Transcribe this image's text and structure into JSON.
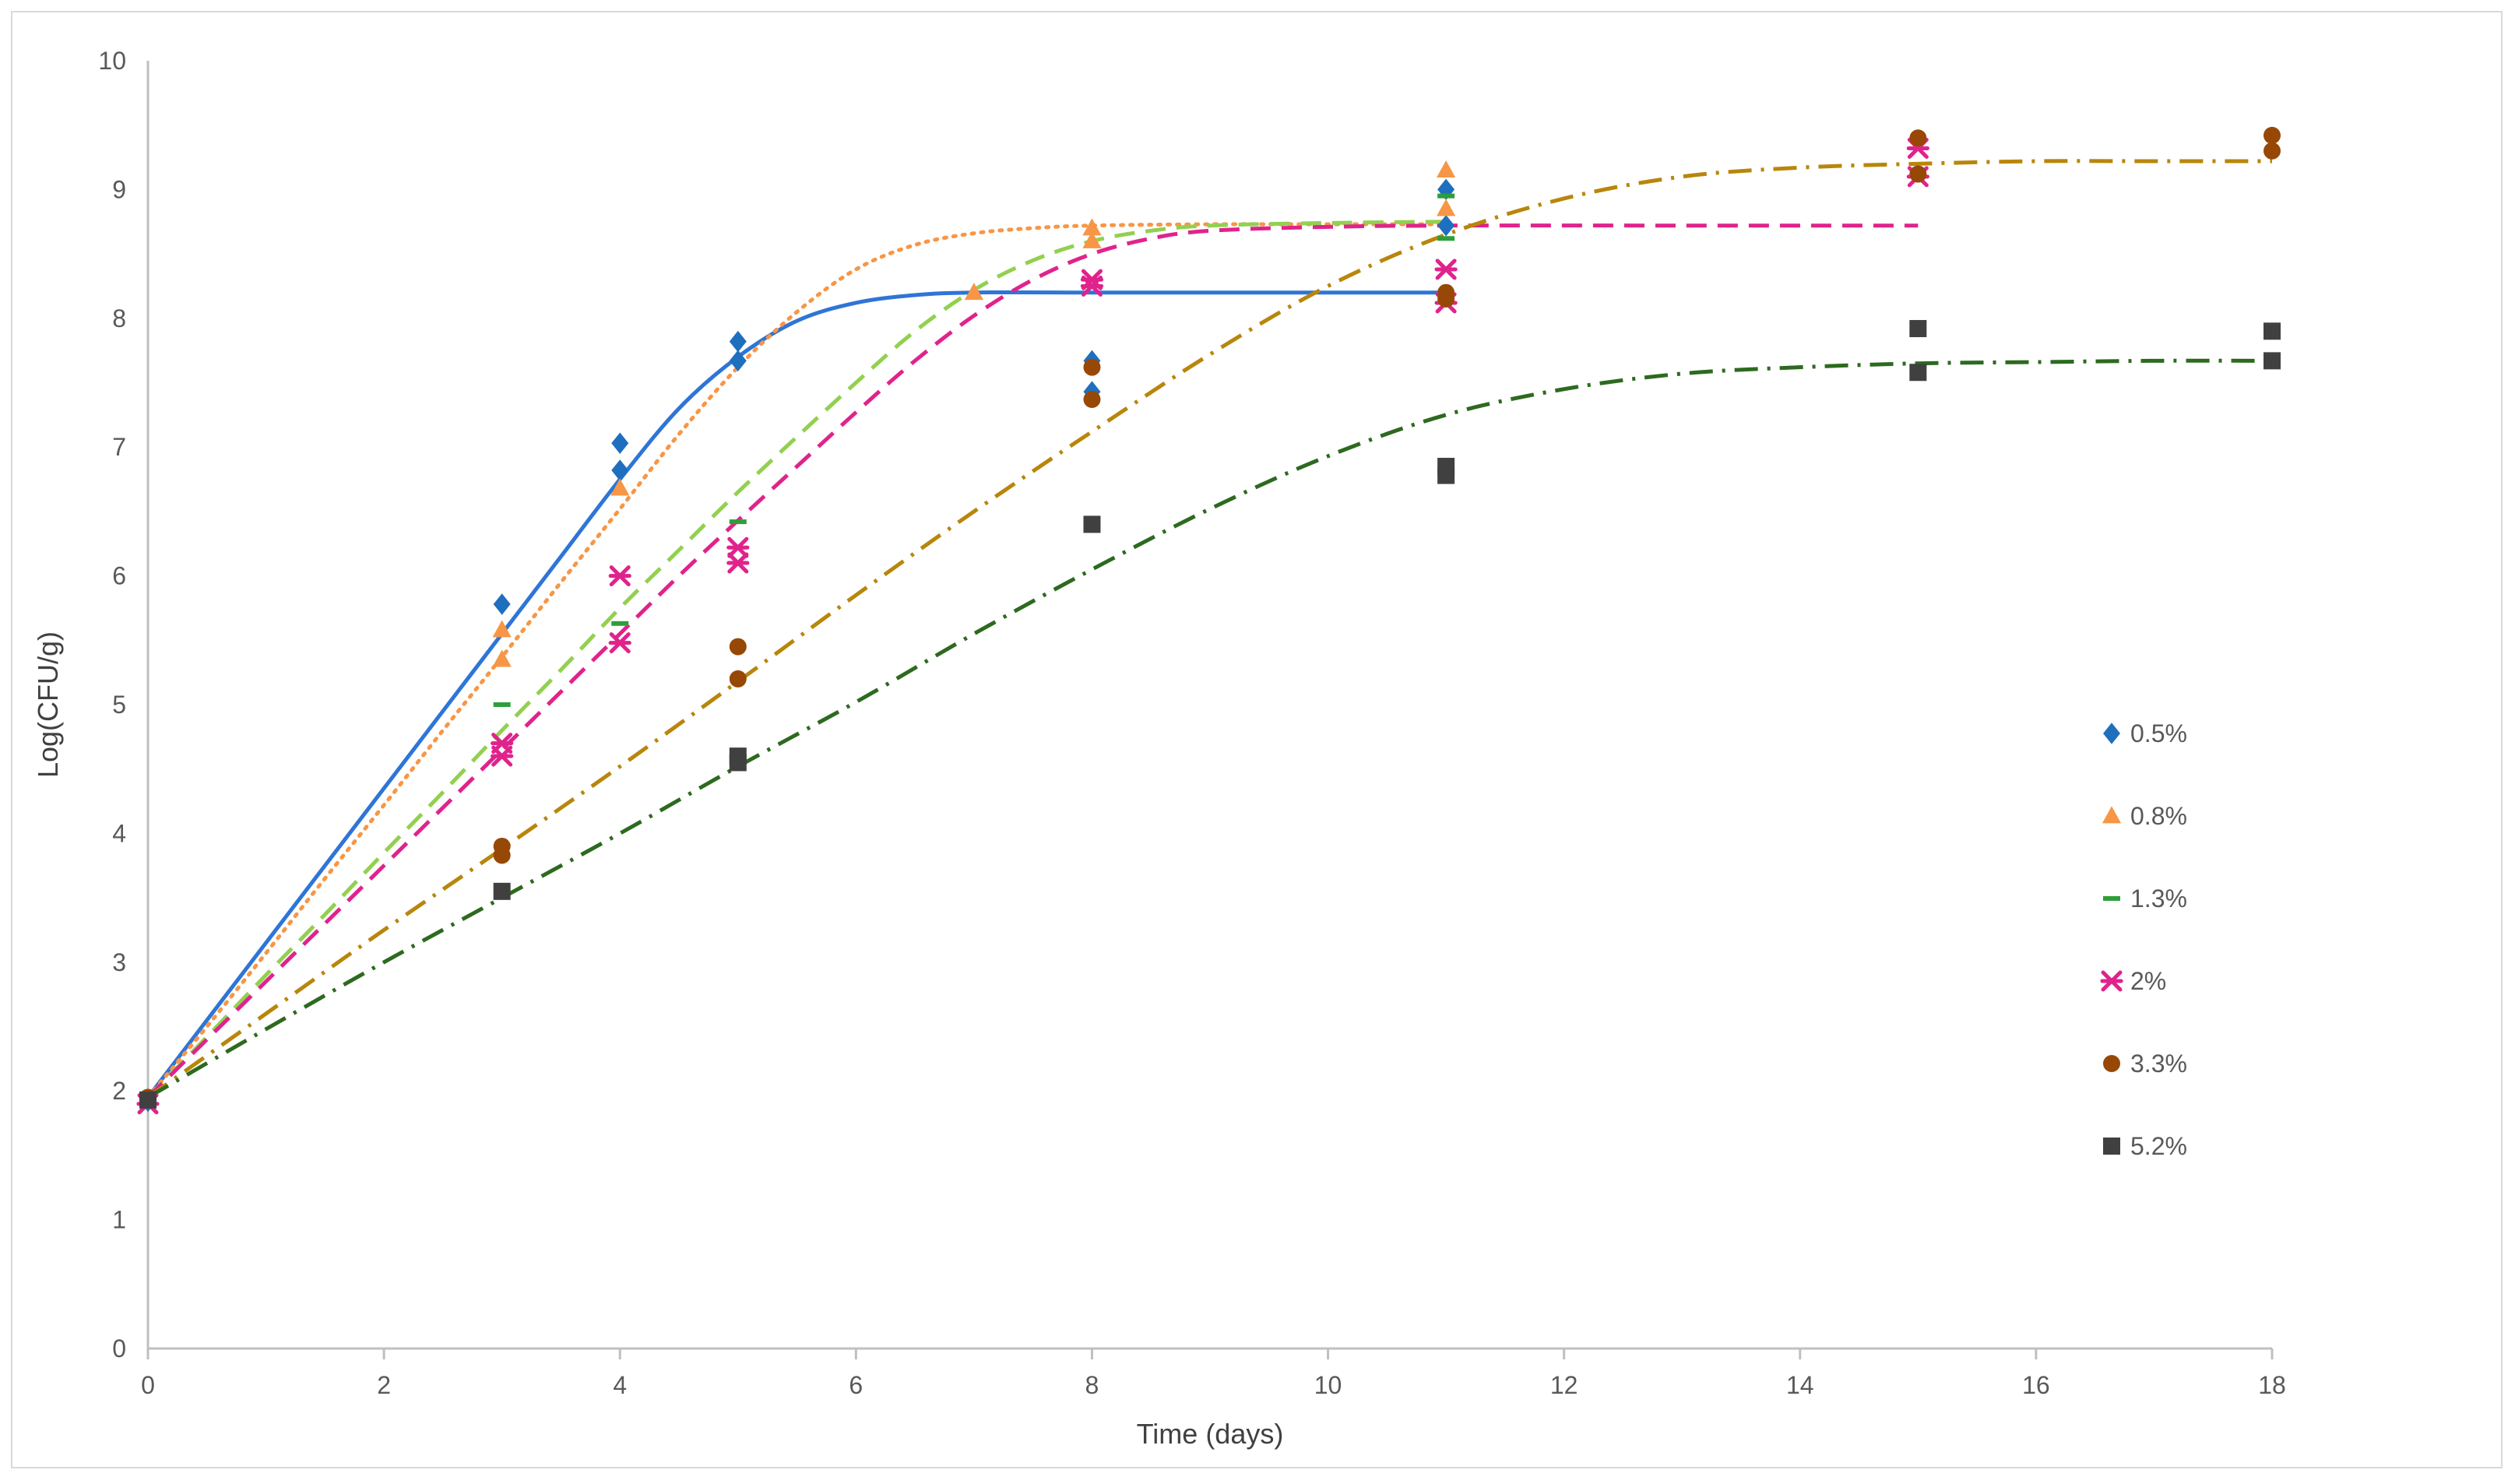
{
  "chart_data": {
    "type": "scatter",
    "title": "",
    "xlabel": "Time (days)",
    "ylabel": "Log(CFU/g)",
    "xlim": [
      0,
      18
    ],
    "ylim": [
      0,
      10
    ],
    "xticks": [
      0,
      2,
      4,
      6,
      8,
      10,
      12,
      14,
      16,
      18
    ],
    "yticks": [
      0,
      1,
      2,
      3,
      4,
      5,
      6,
      7,
      8,
      9,
      10
    ],
    "grid": false,
    "legend_position": "right",
    "series": [
      {
        "name": "0.5%",
        "marker": "diamond",
        "color": "#1f6fbf",
        "points": [
          [
            0,
            1.92
          ],
          [
            3,
            5.78
          ],
          [
            4,
            7.03
          ],
          [
            4,
            6.82
          ],
          [
            5,
            7.82
          ],
          [
            5,
            7.67
          ],
          [
            8,
            7.67
          ],
          [
            8,
            7.43
          ],
          [
            11,
            9.0
          ],
          [
            11,
            8.72
          ]
        ],
        "fit_line_style": "solid",
        "fit_line_color": "#2e75d6",
        "fit": [
          [
            0,
            1.95
          ],
          [
            0.5,
            2.55
          ],
          [
            1,
            3.15
          ],
          [
            1.5,
            3.75
          ],
          [
            2,
            4.35
          ],
          [
            2.5,
            4.95
          ],
          [
            3,
            5.55
          ],
          [
            3.5,
            6.15
          ],
          [
            4,
            6.75
          ],
          [
            4.5,
            7.3
          ],
          [
            5,
            7.7
          ],
          [
            5.5,
            7.98
          ],
          [
            6,
            8.12
          ],
          [
            6.5,
            8.18
          ],
          [
            7,
            8.2
          ],
          [
            8,
            8.2
          ],
          [
            9,
            8.2
          ],
          [
            10,
            8.2
          ],
          [
            11,
            8.2
          ]
        ]
      },
      {
        "name": "0.8%",
        "marker": "triangle",
        "color": "#f79646",
        "points": [
          [
            0,
            1.95
          ],
          [
            3,
            5.58
          ],
          [
            3,
            5.35
          ],
          [
            4,
            6.68
          ],
          [
            7,
            8.2
          ],
          [
            8,
            8.7
          ],
          [
            8,
            8.6
          ],
          [
            11,
            9.15
          ],
          [
            11,
            8.85
          ]
        ],
        "fit_line_style": "dotted",
        "fit_line_color": "#f79646",
        "fit": [
          [
            0,
            1.95
          ],
          [
            0.5,
            2.5
          ],
          [
            1,
            3.07
          ],
          [
            1.5,
            3.65
          ],
          [
            2,
            4.22
          ],
          [
            2.5,
            4.8
          ],
          [
            3,
            5.37
          ],
          [
            3.5,
            5.95
          ],
          [
            4,
            6.52
          ],
          [
            4.5,
            7.1
          ],
          [
            5,
            7.62
          ],
          [
            5.5,
            8.05
          ],
          [
            6,
            8.38
          ],
          [
            6.5,
            8.57
          ],
          [
            7,
            8.66
          ],
          [
            7.5,
            8.7
          ],
          [
            8,
            8.72
          ],
          [
            9,
            8.73
          ],
          [
            10,
            8.73
          ],
          [
            11,
            8.73
          ]
        ]
      },
      {
        "name": "1.3%",
        "marker": "dash",
        "color": "#2e9e3a",
        "points": [
          [
            0,
            1.95
          ],
          [
            3,
            5.0
          ],
          [
            4,
            5.63
          ],
          [
            5,
            6.42
          ],
          [
            11,
            8.95
          ],
          [
            11,
            8.62
          ]
        ],
        "fit_line_style": "dashed",
        "fit_line_color": "#92d050",
        "fit": [
          [
            0,
            1.95
          ],
          [
            0.5,
            2.42
          ],
          [
            1,
            2.9
          ],
          [
            1.5,
            3.37
          ],
          [
            2,
            3.85
          ],
          [
            2.5,
            4.32
          ],
          [
            3,
            4.8
          ],
          [
            3.5,
            5.27
          ],
          [
            4,
            5.75
          ],
          [
            4.5,
            6.2
          ],
          [
            5,
            6.65
          ],
          [
            5.5,
            7.08
          ],
          [
            6,
            7.5
          ],
          [
            6.5,
            7.9
          ],
          [
            7,
            8.22
          ],
          [
            7.5,
            8.45
          ],
          [
            8,
            8.6
          ],
          [
            8.5,
            8.68
          ],
          [
            9,
            8.72
          ],
          [
            10,
            8.74
          ],
          [
            11,
            8.75
          ]
        ]
      },
      {
        "name": "2%",
        "marker": "asterisk",
        "color": "#e0238c",
        "points": [
          [
            0,
            1.9
          ],
          [
            3,
            4.7
          ],
          [
            3,
            4.6
          ],
          [
            4,
            6.0
          ],
          [
            4,
            5.48
          ],
          [
            5,
            6.22
          ],
          [
            5,
            6.1
          ],
          [
            8,
            8.3
          ],
          [
            8,
            8.25
          ],
          [
            11,
            8.38
          ],
          [
            11,
            8.12
          ],
          [
            15,
            9.32
          ],
          [
            15,
            9.1
          ]
        ],
        "fit_line_style": "dashed",
        "fit_line_color": "#e0238c",
        "fit": [
          [
            0,
            1.95
          ],
          [
            0.5,
            2.4
          ],
          [
            1,
            2.85
          ],
          [
            1.5,
            3.3
          ],
          [
            2,
            3.75
          ],
          [
            2.5,
            4.2
          ],
          [
            3,
            4.65
          ],
          [
            3.5,
            5.1
          ],
          [
            4,
            5.55
          ],
          [
            4.5,
            6.0
          ],
          [
            5,
            6.43
          ],
          [
            5.5,
            6.85
          ],
          [
            6,
            7.27
          ],
          [
            6.5,
            7.67
          ],
          [
            7,
            8.02
          ],
          [
            7.5,
            8.3
          ],
          [
            8,
            8.5
          ],
          [
            8.5,
            8.62
          ],
          [
            9,
            8.68
          ],
          [
            10,
            8.71
          ],
          [
            11,
            8.72
          ],
          [
            13,
            8.72
          ],
          [
            15,
            8.72
          ]
        ]
      },
      {
        "name": "3.3%",
        "marker": "circle",
        "color": "#974806",
        "points": [
          [
            0,
            1.95
          ],
          [
            3,
            3.9
          ],
          [
            3,
            3.83
          ],
          [
            5,
            5.45
          ],
          [
            5,
            5.2
          ],
          [
            8,
            7.62
          ],
          [
            8,
            7.37
          ],
          [
            11,
            8.2
          ],
          [
            11,
            8.15
          ],
          [
            15,
            9.4
          ],
          [
            15,
            9.12
          ],
          [
            18,
            9.42
          ],
          [
            18,
            9.3
          ]
        ],
        "fit_line_style": "dash-dot",
        "fit_line_color": "#b8860b",
        "fit": [
          [
            0,
            1.95
          ],
          [
            1,
            2.6
          ],
          [
            2,
            3.25
          ],
          [
            3,
            3.88
          ],
          [
            4,
            4.52
          ],
          [
            5,
            5.18
          ],
          [
            6,
            5.85
          ],
          [
            7,
            6.5
          ],
          [
            8,
            7.12
          ],
          [
            9,
            7.72
          ],
          [
            10,
            8.25
          ],
          [
            11,
            8.65
          ],
          [
            12,
            8.93
          ],
          [
            13,
            9.1
          ],
          [
            14,
            9.17
          ],
          [
            15,
            9.2
          ],
          [
            16,
            9.22
          ],
          [
            17,
            9.22
          ],
          [
            18,
            9.22
          ]
        ]
      },
      {
        "name": "5.2%",
        "marker": "square",
        "color": "#404040",
        "points": [
          [
            0,
            1.93
          ],
          [
            3,
            3.55
          ],
          [
            5,
            4.6
          ],
          [
            5,
            4.55
          ],
          [
            8,
            6.4
          ],
          [
            11,
            6.85
          ],
          [
            11,
            6.78
          ],
          [
            15,
            7.92
          ],
          [
            15,
            7.58
          ],
          [
            18,
            7.9
          ],
          [
            18,
            7.67
          ]
        ],
        "fit_line_style": "dash-dot",
        "fit_line_color": "#2d6a1f",
        "fit": [
          [
            0,
            1.95
          ],
          [
            1,
            2.48
          ],
          [
            2,
            3.0
          ],
          [
            3,
            3.5
          ],
          [
            4,
            4.0
          ],
          [
            5,
            4.52
          ],
          [
            6,
            5.02
          ],
          [
            7,
            5.55
          ],
          [
            8,
            6.05
          ],
          [
            9,
            6.52
          ],
          [
            10,
            6.93
          ],
          [
            11,
            7.25
          ],
          [
            12,
            7.45
          ],
          [
            13,
            7.57
          ],
          [
            14,
            7.62
          ],
          [
            15,
            7.65
          ],
          [
            16,
            7.66
          ],
          [
            17,
            7.67
          ],
          [
            18,
            7.67
          ]
        ]
      }
    ]
  }
}
